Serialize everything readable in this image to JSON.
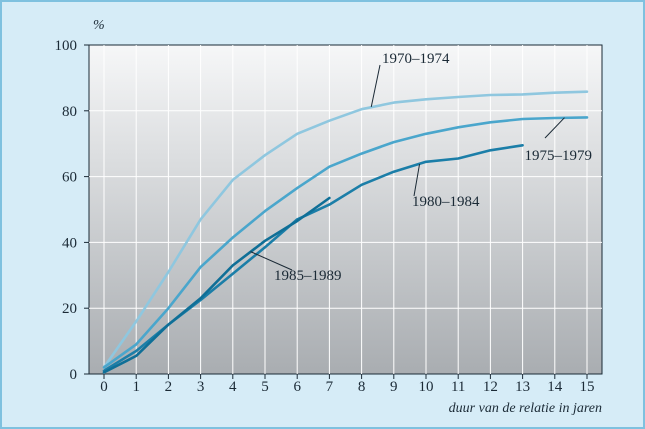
{
  "chart_data": {
    "type": "line",
    "title": "",
    "xlabel": "duur van de relatie in jaren",
    "ylabel": "%",
    "xlim": [
      0,
      15
    ],
    "ylim": [
      0,
      100
    ],
    "x_ticks": [
      0,
      1,
      2,
      3,
      4,
      5,
      6,
      7,
      8,
      9,
      10,
      11,
      12,
      13,
      14,
      15
    ],
    "y_ticks": [
      0,
      20,
      40,
      60,
      80,
      100
    ],
    "grid": true,
    "legend": "none (series labeled directly on lines)",
    "background": "gray gradient plot area",
    "series": [
      {
        "name": "1970–1974",
        "color": "#8fc7df",
        "x": [
          0,
          1,
          2,
          3,
          4,
          5,
          6,
          7,
          8,
          9,
          10,
          11,
          12,
          13,
          14,
          15
        ],
        "values": [
          2,
          16,
          31,
          47,
          59,
          66.5,
          73,
          77,
          80.5,
          82.5,
          83.5,
          84.2,
          84.8,
          85,
          85.5,
          85.8
        ]
      },
      {
        "name": "1975–1979",
        "color": "#4aa6cc",
        "x": [
          0,
          1,
          2,
          3,
          4,
          5,
          6,
          7,
          8,
          9,
          10,
          11,
          12,
          13,
          14,
          15
        ],
        "values": [
          2,
          9,
          20,
          32.5,
          41.5,
          49.5,
          56.5,
          63,
          67,
          70.5,
          73,
          75,
          76.5,
          77.5,
          77.8,
          78
        ]
      },
      {
        "name": "1980–1984",
        "color": "#1b7ea8",
        "x": [
          0,
          1,
          2,
          3,
          4,
          5,
          6,
          7,
          8,
          9,
          10,
          11,
          12,
          13
        ],
        "values": [
          1,
          7,
          15,
          22.5,
          30.5,
          38.5,
          47,
          51.5,
          57.5,
          61.5,
          64.5,
          65.5,
          68,
          69.5
        ]
      },
      {
        "name": "1985–1989",
        "color": "#0f6f97",
        "x": [
          0,
          1,
          2,
          3,
          4,
          5,
          6,
          7
        ],
        "values": [
          0.5,
          5.5,
          15,
          23,
          33,
          40.5,
          46.5,
          53.5
        ]
      }
    ]
  }
}
